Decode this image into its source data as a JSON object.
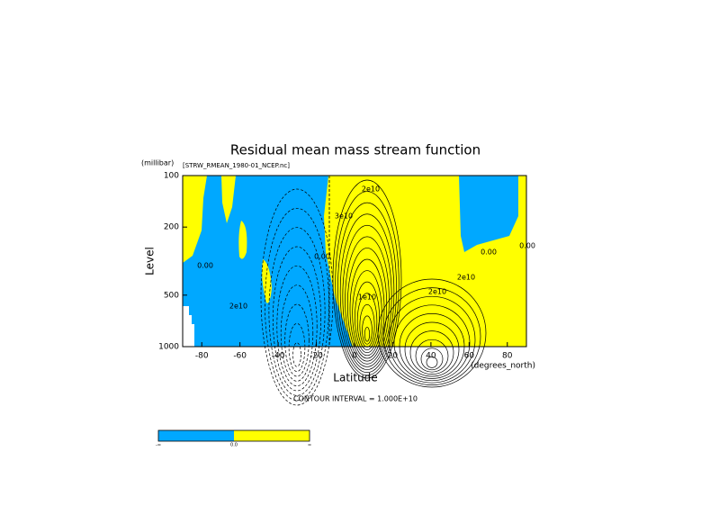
{
  "chart_data": {
    "type": "contour",
    "title": "Residual mean mass stream function",
    "subtitle": "[STRW_RMEAN_1980-01_NCEP.nc]",
    "y_unit": "(millibar)",
    "y_label": "Level",
    "x_label": "Latitude",
    "x_unit": "(degrees_north)",
    "footer": "CONTOUR INTERVAL = 1.000E+10",
    "xlim": [
      -90,
      90
    ],
    "xticks": [
      -80,
      -60,
      -40,
      -20,
      0,
      20,
      40,
      60,
      80
    ],
    "ylim": [
      1000,
      100
    ],
    "yticks": [
      100,
      200,
      500,
      1000
    ],
    "log_y": true,
    "colors": [
      "#00a8ff",
      "#ffff00"
    ],
    "colorbar_labels": [
      "-∞",
      "0.0",
      "∞"
    ],
    "contour_labels": [
      "2e10",
      "3e10",
      "0.00",
      "0.00",
      "2e10",
      "2e10",
      "0.00",
      "2e10",
      "1e10",
      "0.00"
    ]
  }
}
